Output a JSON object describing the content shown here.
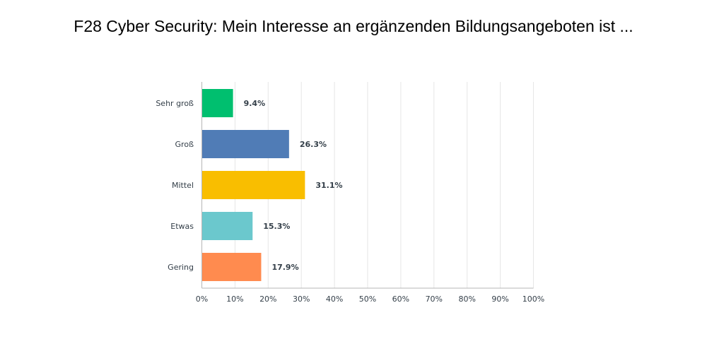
{
  "chart_data": {
    "type": "bar",
    "orientation": "horizontal",
    "title": "F28 Cyber Security: Mein Interesse an ergänzenden Bildungsangeboten ist ...",
    "categories": [
      "Sehr groß",
      "Groß",
      "Mittel",
      "Etwas",
      "Gering"
    ],
    "values": [
      9.4,
      26.3,
      31.1,
      15.3,
      17.9
    ],
    "value_labels": [
      "9.4%",
      "26.3%",
      "31.1%",
      "15.3%",
      "17.9%"
    ],
    "colors": [
      "#00bf6f",
      "#507cb6",
      "#f9be00",
      "#6bc8cd",
      "#ff8b4f"
    ],
    "xlim": [
      0,
      100
    ],
    "x_ticks": [
      0,
      10,
      20,
      30,
      40,
      50,
      60,
      70,
      80,
      90,
      100
    ],
    "x_tick_labels": [
      "0%",
      "10%",
      "20%",
      "30%",
      "40%",
      "50%",
      "60%",
      "70%",
      "80%",
      "90%",
      "100%"
    ],
    "grid": true,
    "legend": "none"
  }
}
